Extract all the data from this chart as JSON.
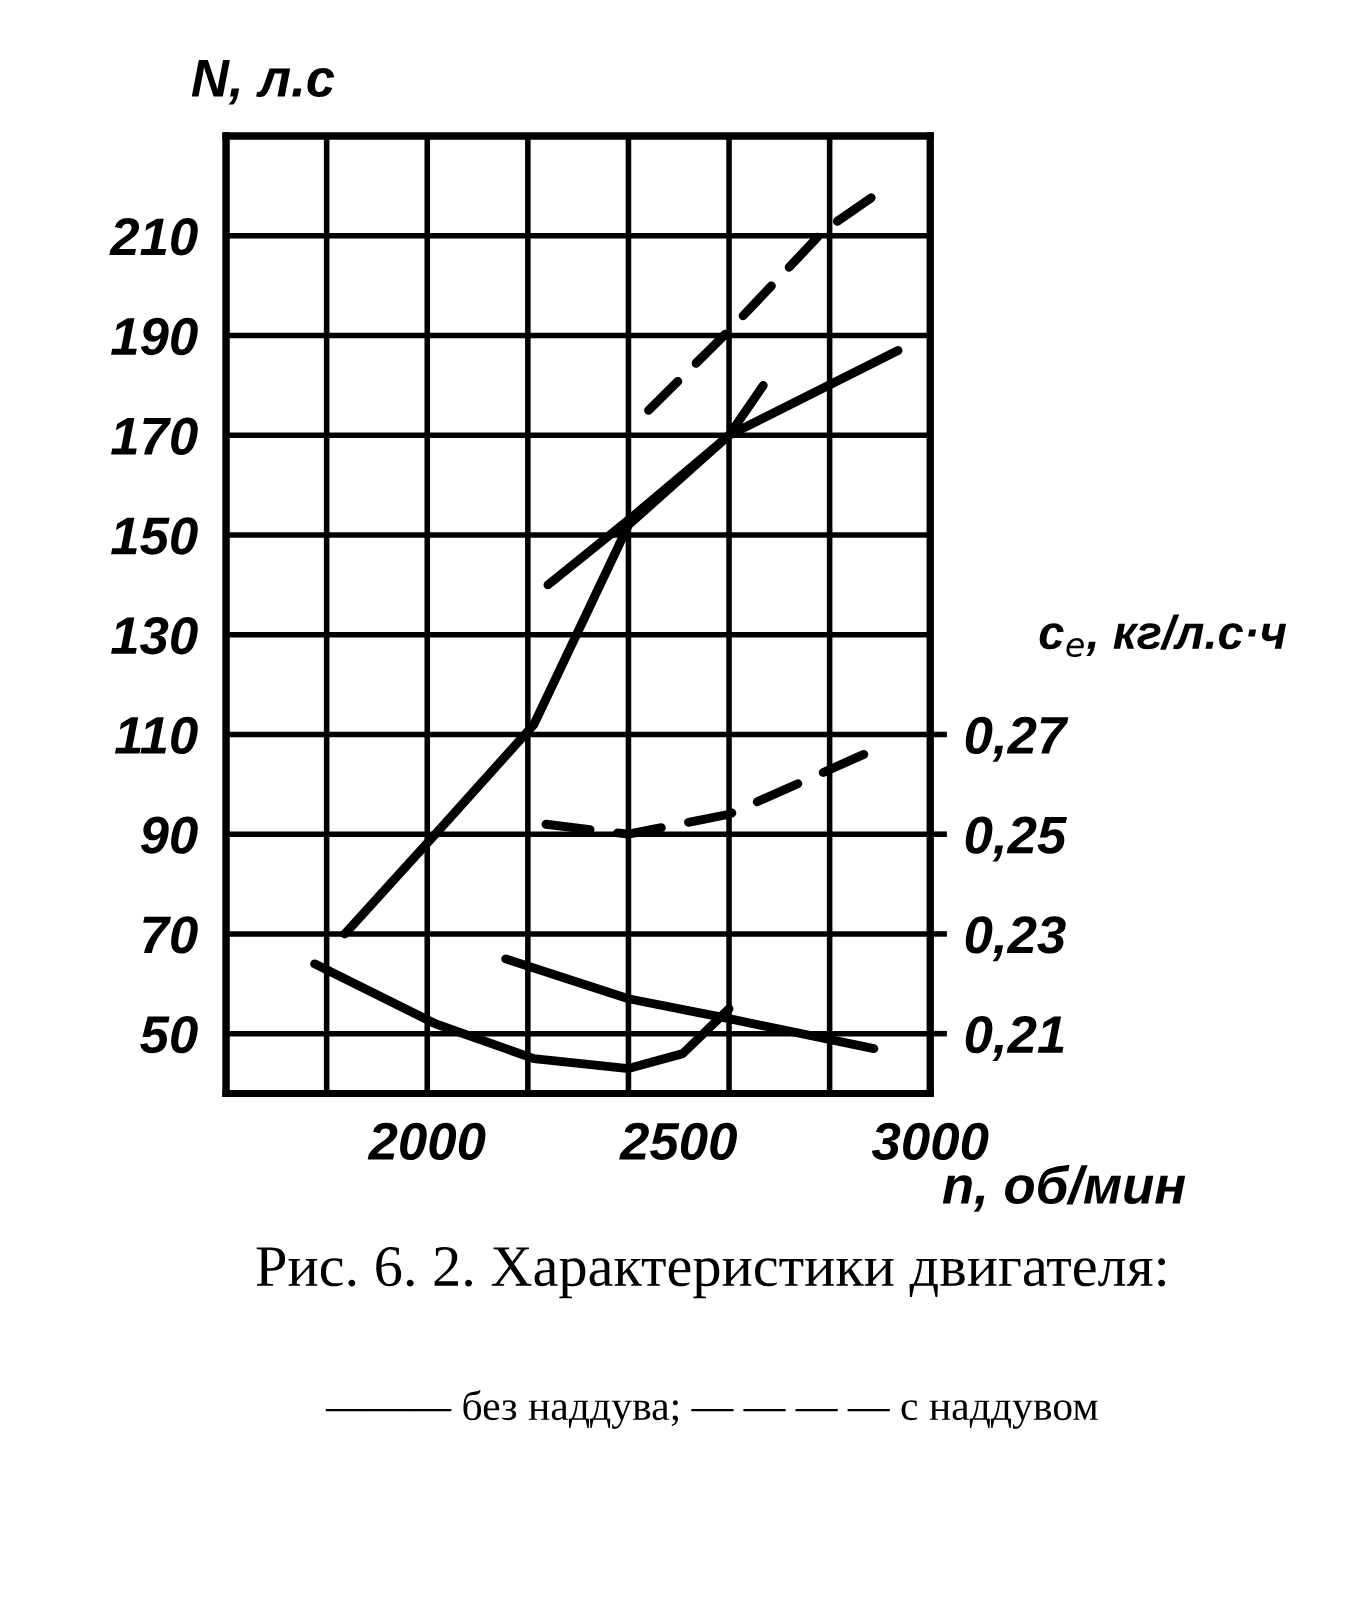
{
  "chart_data": {
    "type": "line",
    "title": "Рис. 6. 2. Характеристики двигателя:",
    "ylabel": "N, л.с",
    "xlabel": "n, об/мин",
    "y2label": "c$_{e}$, кг/л.с·ч",
    "xlim": [
      1600,
      3000
    ],
    "xticks": [
      2000,
      2500,
      3000
    ],
    "ylim": [
      38,
      230
    ],
    "yticks": [
      50,
      70,
      90,
      110,
      130,
      150,
      170,
      190,
      210
    ],
    "y2lim": [
      0.198,
      0.39
    ],
    "y2ticks": [
      {
        "value": 0.21,
        "label": "0,21"
      },
      {
        "value": 0.23,
        "label": "0,23"
      },
      {
        "value": 0.25,
        "label": "0,25"
      },
      {
        "value": 0.27,
        "label": "0,27"
      }
    ],
    "grid": true,
    "legend": false,
    "marker": "none",
    "annotations": [
      "——— без наддува; — — — — с наддувом"
    ],
    "series": [
      {
        "color": "#000000",
        "line_style": "solid",
        "x": [
          1836,
          2016,
          2212,
          2400,
          2600,
          2668
        ],
        "values": [
          70,
          90,
          112,
          152,
          170,
          180
        ]
      },
      {
        "color": "#000000",
        "line_style": "solid",
        "x": [
          2240,
          2400,
          2600,
          2936
        ],
        "values": [
          140,
          153,
          170,
          187
        ]
      },
      {
        "color": "#000000",
        "line_style": "dashed",
        "x": [
          2440,
          2600,
          2788,
          2888
        ],
        "values": [
          175,
          191,
          211,
          218
        ]
      },
      {
        "color": "#000000",
        "line_style": "dashed",
        "axis": "y2",
        "x": [
          2236,
          2400,
          2600,
          2868
        ],
        "values": [
          0.252,
          0.25,
          0.254,
          0.266
        ]
      },
      {
        "color": "#000000",
        "line_style": "solid",
        "axis": "y2",
        "x": [
          1776,
          2016,
          2212,
          2400,
          2508,
          2600
        ],
        "values": [
          0.224,
          0.212,
          0.205,
          0.203,
          0.206,
          0.215
        ]
      },
      {
        "color": "#000000",
        "line_style": "solid",
        "axis": "y2",
        "x": [
          2156,
          2400,
          2600,
          2888
        ],
        "values": [
          0.225,
          0.217,
          0.213,
          0.207
        ]
      }
    ]
  }
}
